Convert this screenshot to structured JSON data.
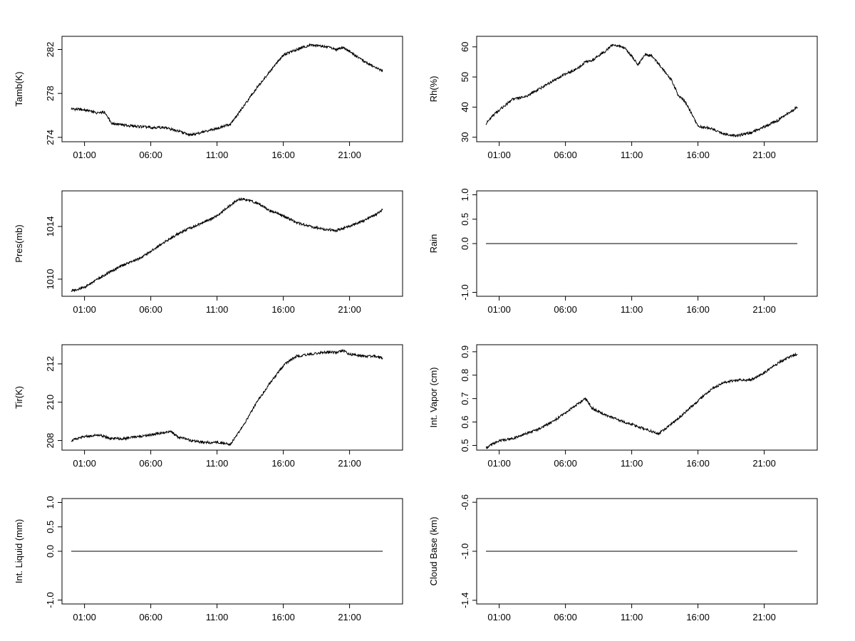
{
  "figure": {
    "background": "#ffffff",
    "line_color": "#000000"
  },
  "chart_data": [
    {
      "type": "line",
      "ylabel": "Tamb(K)",
      "yticks": [
        "274",
        "278",
        "282"
      ],
      "ytick_values": [
        274,
        278,
        282
      ],
      "ylim": [
        273.6,
        283.2
      ],
      "xticks": [
        "01:00",
        "06:00",
        "11:00",
        "16:00",
        "21:00"
      ],
      "xtick_values": [
        1,
        6,
        11,
        16,
        21
      ],
      "xlim": [
        -0.7,
        25.0
      ],
      "grid": false,
      "series": [
        {
          "x": [
            0.0,
            1.0,
            2.0,
            2.5,
            2.7,
            3.0,
            4.0,
            5.0,
            6.0,
            7.0,
            8.0,
            9.0,
            10.0,
            11.0,
            12.0,
            13.0,
            14.0,
            15.0,
            15.5,
            16.0,
            17.0,
            18.0,
            19.0,
            20.0,
            20.5,
            21.0,
            22.0,
            23.0,
            23.5
          ],
          "y": [
            276.6,
            276.5,
            276.2,
            276.3,
            276.0,
            275.3,
            275.1,
            275.0,
            274.9,
            274.9,
            274.6,
            274.2,
            274.5,
            274.8,
            275.2,
            276.8,
            278.5,
            280.0,
            280.8,
            281.5,
            282.0,
            282.4,
            282.3,
            282.0,
            282.2,
            281.8,
            281.0,
            280.3,
            280.1
          ]
        }
      ]
    },
    {
      "type": "line",
      "ylabel": "Rh(%)",
      "yticks": [
        "30",
        "40",
        "50",
        "60"
      ],
      "ytick_values": [
        30,
        40,
        50,
        60
      ],
      "ylim": [
        28.5,
        63.5
      ],
      "xticks": [
        "01:00",
        "06:00",
        "11:00",
        "16:00",
        "21:00"
      ],
      "xtick_values": [
        1,
        6,
        11,
        16,
        21
      ],
      "xlim": [
        -0.7,
        25.0
      ],
      "grid": false,
      "series": [
        {
          "x": [
            0.0,
            0.5,
            1.0,
            2.0,
            3.0,
            4.0,
            5.0,
            6.0,
            7.0,
            7.5,
            8.0,
            9.0,
            9.5,
            10.0,
            10.5,
            11.0,
            11.5,
            12.0,
            12.5,
            13.0,
            14.0,
            14.5,
            15.0,
            15.5,
            16.0,
            17.0,
            18.0,
            19.0,
            20.0,
            21.0,
            22.0,
            23.0,
            23.5
          ],
          "y": [
            34.5,
            37.0,
            39.0,
            42.5,
            43.5,
            46.0,
            48.5,
            51.0,
            53.0,
            55.0,
            55.5,
            58.5,
            60.5,
            60.5,
            59.5,
            57.0,
            54.0,
            57.5,
            57.0,
            54.5,
            49.0,
            44.0,
            42.0,
            38.0,
            33.5,
            33.0,
            31.0,
            30.5,
            31.5,
            33.5,
            35.5,
            38.5,
            40.0
          ]
        }
      ]
    },
    {
      "type": "line",
      "ylabel": "Pres(mb)",
      "yticks": [
        "1010",
        "1014"
      ],
      "ytick_values": [
        1010,
        1014
      ],
      "ylim": [
        1008.7,
        1016.7
      ],
      "xticks": [
        "01:00",
        "06:00",
        "11:00",
        "16:00",
        "21:00"
      ],
      "xtick_values": [
        1,
        6,
        11,
        16,
        21
      ],
      "xlim": [
        -0.7,
        25.0
      ],
      "grid": false,
      "series": [
        {
          "x": [
            0.0,
            1.0,
            2.0,
            3.0,
            4.0,
            5.0,
            6.0,
            7.0,
            8.0,
            9.0,
            10.0,
            11.0,
            12.0,
            12.5,
            13.0,
            14.0,
            15.0,
            16.0,
            17.0,
            18.0,
            19.0,
            20.0,
            21.0,
            22.0,
            23.0,
            23.5
          ],
          "y": [
            1009.1,
            1009.4,
            1010.0,
            1010.6,
            1011.1,
            1011.5,
            1012.1,
            1012.8,
            1013.4,
            1013.9,
            1014.3,
            1014.8,
            1015.6,
            1016.0,
            1016.1,
            1015.8,
            1015.2,
            1014.8,
            1014.3,
            1014.0,
            1013.8,
            1013.7,
            1014.0,
            1014.4,
            1014.9,
            1015.3
          ]
        }
      ]
    },
    {
      "type": "line",
      "ylabel": "Rain",
      "yticks": [
        "-1.0",
        "0.0",
        "0.5",
        "1.0"
      ],
      "ytick_values": [
        -1.0,
        0.0,
        0.5,
        1.0
      ],
      "ylim": [
        -1.08,
        1.08
      ],
      "xticks": [
        "01:00",
        "06:00",
        "11:00",
        "16:00",
        "21:00"
      ],
      "xtick_values": [
        1,
        6,
        11,
        16,
        21
      ],
      "xlim": [
        -0.7,
        25.0
      ],
      "grid": false,
      "series": [
        {
          "x": [
            0.0,
            23.5
          ],
          "y": [
            0.0,
            0.0
          ]
        }
      ]
    },
    {
      "type": "line",
      "ylabel": "Tir(K)",
      "yticks": [
        "208",
        "210",
        "212"
      ],
      "ytick_values": [
        208,
        210,
        212
      ],
      "ylim": [
        207.5,
        213.0
      ],
      "xticks": [
        "01:00",
        "06:00",
        "11:00",
        "16:00",
        "21:00"
      ],
      "xtick_values": [
        1,
        6,
        11,
        16,
        21
      ],
      "xlim": [
        -0.7,
        25.0
      ],
      "grid": false,
      "series": [
        {
          "x": [
            0.0,
            1.0,
            2.0,
            3.0,
            4.0,
            5.0,
            6.0,
            7.0,
            7.5,
            8.0,
            9.0,
            10.0,
            11.0,
            12.0,
            12.5,
            13.0,
            14.0,
            15.0,
            16.0,
            16.5,
            17.0,
            18.0,
            19.0,
            20.0,
            20.5,
            21.0,
            22.0,
            23.0,
            23.5
          ],
          "y": [
            208.0,
            208.2,
            208.3,
            208.1,
            208.1,
            208.2,
            208.3,
            208.4,
            208.5,
            208.2,
            208.0,
            207.9,
            207.9,
            207.8,
            208.3,
            208.8,
            210.0,
            211.0,
            211.9,
            212.2,
            212.4,
            212.5,
            212.6,
            212.6,
            212.7,
            212.5,
            212.4,
            212.4,
            212.3
          ]
        }
      ]
    },
    {
      "type": "line",
      "ylabel": "Int. Vapor (cm)",
      "yticks": [
        "0.5",
        "0.6",
        "0.7",
        "0.8",
        "0.9"
      ],
      "ytick_values": [
        0.5,
        0.6,
        0.7,
        0.8,
        0.9
      ],
      "ylim": [
        0.48,
        0.93
      ],
      "xticks": [
        "01:00",
        "06:00",
        "11:00",
        "16:00",
        "21:00"
      ],
      "xtick_values": [
        1,
        6,
        11,
        16,
        21
      ],
      "xlim": [
        -0.7,
        25.0
      ],
      "grid": false,
      "series": [
        {
          "x": [
            0.0,
            1.0,
            2.0,
            3.0,
            4.0,
            5.0,
            6.0,
            7.0,
            7.5,
            8.0,
            9.0,
            10.0,
            11.0,
            12.0,
            12.5,
            13.0,
            14.0,
            15.0,
            16.0,
            17.0,
            18.0,
            19.0,
            20.0,
            21.0,
            22.0,
            23.0,
            23.5
          ],
          "y": [
            0.49,
            0.52,
            0.53,
            0.55,
            0.57,
            0.6,
            0.64,
            0.68,
            0.7,
            0.66,
            0.63,
            0.61,
            0.59,
            0.57,
            0.56,
            0.55,
            0.59,
            0.64,
            0.69,
            0.74,
            0.77,
            0.78,
            0.78,
            0.81,
            0.85,
            0.88,
            0.89
          ]
        }
      ]
    },
    {
      "type": "line",
      "ylabel": "Int. Liquid (mm)",
      "yticks": [
        "-1.0",
        "0.0",
        "0.5",
        "1.0"
      ],
      "ytick_values": [
        -1.0,
        0.0,
        0.5,
        1.0
      ],
      "ylim": [
        -1.08,
        1.08
      ],
      "xticks": [
        "01:00",
        "06:00",
        "11:00",
        "16:00",
        "21:00"
      ],
      "xtick_values": [
        1,
        6,
        11,
        16,
        21
      ],
      "xlim": [
        -0.7,
        25.0
      ],
      "grid": false,
      "series": [
        {
          "x": [
            0.0,
            23.5
          ],
          "y": [
            0.0,
            0.0
          ]
        }
      ]
    },
    {
      "type": "line",
      "ylabel": "Cloud Base (km)",
      "yticks": [
        "-1.4",
        "-1.0",
        "-0.6"
      ],
      "ytick_values": [
        -1.4,
        -1.0,
        -0.6
      ],
      "ylim": [
        -1.43,
        -0.57
      ],
      "xticks": [
        "01:00",
        "06:00",
        "11:00",
        "16:00",
        "21:00"
      ],
      "xtick_values": [
        1,
        6,
        11,
        16,
        21
      ],
      "xlim": [
        -0.7,
        25.0
      ],
      "grid": false,
      "series": [
        {
          "x": [
            0.0,
            23.5
          ],
          "y": [
            -1.0,
            -1.0
          ]
        }
      ]
    }
  ]
}
